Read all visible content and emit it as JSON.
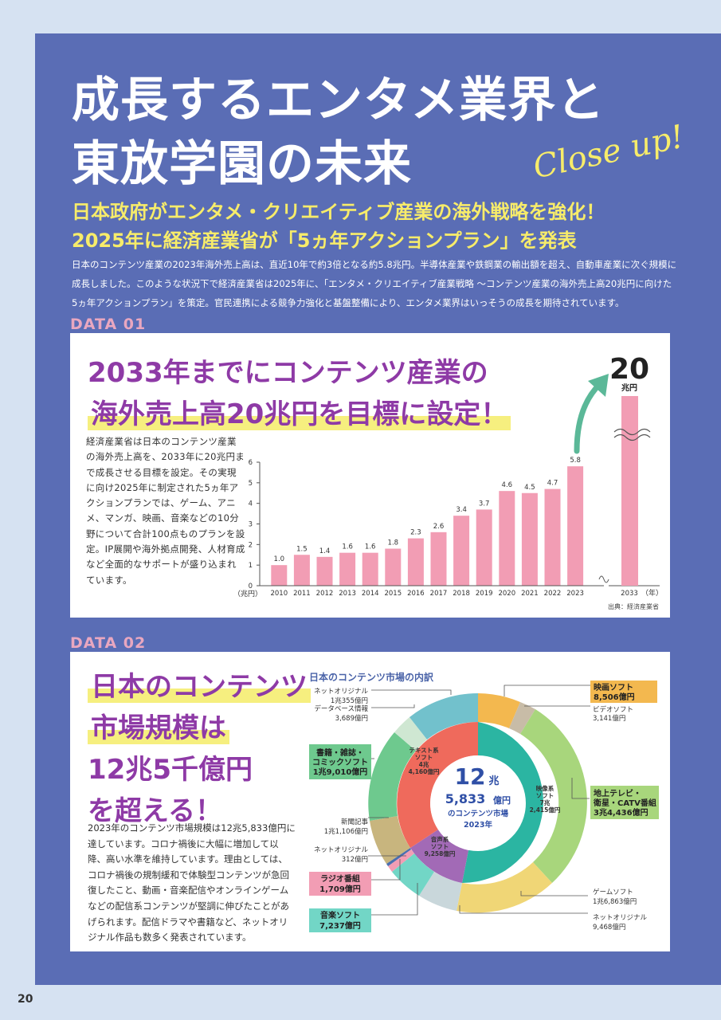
{
  "title_line1": "成長するエンタメ業界と",
  "title_line2": "東放学園の未来",
  "closeup": "Close up!",
  "sub_line1": "日本政府がエンタメ・クリエイティブ産業の海外戦略を強化！",
  "sub_line2": "2025年に経済産業省が「5ヵ年アクションプラン」を発表",
  "intro": "日本のコンテンツ産業の2023年海外売上高は、直近10年で約3倍となる約5.8兆円。半導体産業や鉄鋼業の輸出額を超え、自動車産業に次ぐ規模に成長しました。このような状況下で経済産業省は2025年に、「エンタメ・クリエイティブ産業戦略 ～コンテンツ産業の海外売上高20兆円に向けた5ヵ年アクションプラン」を策定。官民連携による競争力強化と基盤整備により、エンタメ業界はいっそうの成長を期待されています。",
  "data1": {
    "label": "DATA 01",
    "heading_line1": "2033年までにコンテンツ産業の",
    "heading_line2": "海外売上高20兆円を目標に設定！",
    "body": "経済産業省は日本のコンテンツ産業の海外売上高を、2033年に20兆円まで成長させる目標を設定。その実現に向け2025年に制定された5ヵ年アクションプランでは、ゲーム、アニメ、マンガ、映画、音楽などの10分野について合計100点ものプランを設定。IP展開や海外拠点開発、人材育成など全面的なサポートが盛り込まれています。",
    "source": "出典：経済産業省"
  },
  "chart_data": {
    "type": "bar",
    "categories": [
      "2010",
      "2011",
      "2012",
      "2013",
      "2014",
      "2015",
      "2016",
      "2017",
      "2018",
      "2019",
      "2020",
      "2021",
      "2022",
      "2023"
    ],
    "values": [
      1.0,
      1.5,
      1.4,
      1.6,
      1.6,
      1.8,
      2.3,
      2.6,
      3.4,
      3.7,
      4.6,
      4.5,
      4.7,
      5.8
    ],
    "value_labels": [
      "1.0",
      "1.5",
      "1.4",
      "1.6",
      "1.6",
      "1.8",
      "2.3",
      "2.6",
      "3.4",
      "3.7",
      "4.6",
      "4.5",
      "4.7",
      "5.8"
    ],
    "yticks": [
      "0",
      "1",
      "2",
      "3",
      "4",
      "5",
      "6"
    ],
    "ylim": [
      0,
      6
    ],
    "ylabel": "（兆円）",
    "xlabel": "（年）",
    "target": {
      "category": "2033",
      "value": "20",
      "unit": "兆円"
    },
    "bar_color": "#f29db4"
  },
  "data2": {
    "label": "DATA 02",
    "heading_lines": [
      "日本のコンテンツ",
      "市場規模は",
      "12兆5千億円",
      "を超える！"
    ],
    "body": "2023年のコンテンツ市場規模は12兆5,833億円に達しています。コロナ禍後に大幅に増加して以降、高い水準を維持しています。理由としては、コロナ禍後の規制緩和で体験型コンテンツが急回復したこと、動画・音楽配信やオンラインゲームなどの配信系コンテンツが堅調に伸びたことがあげられます。配信ドラマや書籍など、ネットオリジナル作品も数多く発表されています。",
    "donut_title": "日本のコンテンツ市場の内訳",
    "center": {
      "n1": "12",
      "u1": "兆",
      "n2": "5,833",
      "u2": "億円",
      "l1": "のコンテンツ市場",
      "l2": "2023年"
    },
    "inner_labels": {
      "text": [
        "テキスト系",
        "ソフト",
        "4兆",
        "4,160億円"
      ],
      "video": [
        "映像系",
        "ソフト",
        "7兆",
        "2,415億円"
      ],
      "audio": [
        "音声系",
        "ソフト",
        "9,258億円"
      ]
    },
    "callouts": {
      "movie_soft": [
        "映画ソフト",
        "8,506億円"
      ],
      "video_soft": [
        "ビデオソフト",
        "3,141億円"
      ],
      "tv": [
        "地上テレビ・",
        "衛星・CATV番組",
        "3兆4,436億円"
      ],
      "game": [
        "ゲームソフト",
        "1兆6,863億円"
      ],
      "net_video": [
        "ネットオリジナル",
        "9,468億円"
      ],
      "music": [
        "音楽ソフト",
        "7,237億円"
      ],
      "radio": [
        "ラジオ番組",
        "1,709億円"
      ],
      "net_audio": [
        "ネットオリジナル",
        "312億円"
      ],
      "newspaper": [
        "新聞記事",
        "1兆1,106億円"
      ],
      "books": [
        "書籍・雑誌・",
        "コミックソフト",
        "1兆9,010億円"
      ],
      "database": [
        "データベース情報",
        "3,689億円"
      ],
      "net_text": [
        "ネットオリジナル",
        "1兆355億円"
      ]
    }
  },
  "page_number": "20"
}
